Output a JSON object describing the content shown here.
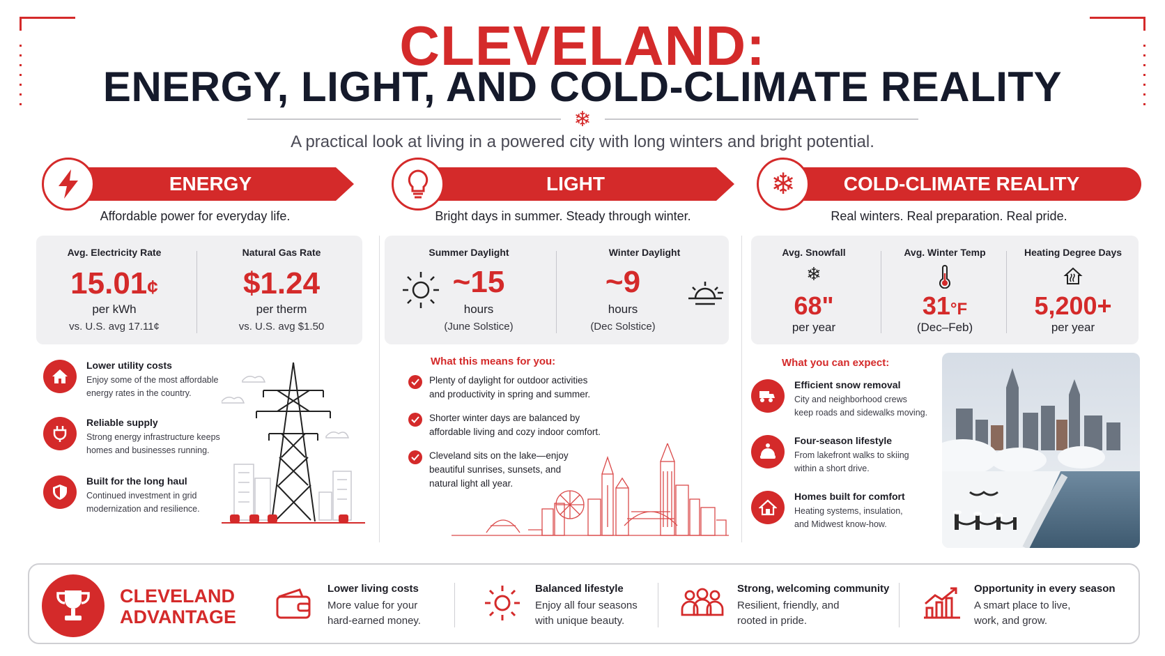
{
  "header": {
    "title_line1": "CLEVELAND:",
    "title_line2": "ENERGY, LIGHT, AND COLD-CLIMATE REALITY",
    "subtitle": "A practical look at living in a powered city with long winters and bright potential."
  },
  "energy": {
    "title": "ENERGY",
    "tagline": "Affordable power for everyday life.",
    "stats": [
      {
        "label": "Avg. Electricity Rate",
        "value": "15.01",
        "value_unit": "¢",
        "unit": "per kWh",
        "compare": "vs. U.S. avg 17.11¢"
      },
      {
        "label": "Natural Gas Rate",
        "value": "$1.24",
        "unit": "per therm",
        "compare": "vs. U.S. avg $1.50"
      }
    ],
    "features": [
      {
        "title": "Lower utility costs",
        "desc1": "Enjoy some of the most affordable",
        "desc2": "energy rates in the country.",
        "icon": "house-icon"
      },
      {
        "title": "Reliable supply",
        "desc1": "Strong energy infrastructure keeps",
        "desc2": "homes and businesses running.",
        "icon": "plug-icon"
      },
      {
        "title": "Built for the long haul",
        "desc1": "Continued investment in grid",
        "desc2": "modernization and resilience.",
        "icon": "shield-icon"
      }
    ]
  },
  "light": {
    "title": "LIGHT",
    "tagline": "Bright days in summer. Steady through winter.",
    "stats": [
      {
        "label": "Summer Daylight",
        "value": "~15",
        "unit": "hours",
        "note": "(June Solstice)"
      },
      {
        "label": "Winter Daylight",
        "value": "~9",
        "unit": "hours",
        "note": "(Dec Solstice)"
      }
    ],
    "section_title": "What this means for you:",
    "points": [
      {
        "line1": "Plenty of daylight for outdoor activities",
        "line2": "and productivity in spring and summer.",
        "line3": ""
      },
      {
        "line1": "Shorter winter days are balanced by",
        "line2": "affordable living and cozy indoor comfort.",
        "line3": ""
      },
      {
        "line1": "Cleveland sits on the lake—enjoy",
        "line2": "beautiful sunrises, sunsets, and",
        "line3": "natural light all year."
      }
    ]
  },
  "cold": {
    "title": "COLD-CLIMATE REALITY",
    "tagline": "Real winters. Real preparation. Real pride.",
    "stats": [
      {
        "label": "Avg. Snowfall",
        "value": "68\"",
        "unit": "per year",
        "icon": "snowflake-icon"
      },
      {
        "label": "Avg. Winter Temp",
        "value": "31",
        "value_unit": "°F",
        "unit": "(Dec–Feb)",
        "icon": "thermometer-icon"
      },
      {
        "label": "Heating Degree Days",
        "value": "5,200+",
        "unit": "per year",
        "icon": "heated-house-icon"
      }
    ],
    "section_title": "What you can expect:",
    "features": [
      {
        "title": "Efficient snow removal",
        "desc1": "City and neighborhood crews",
        "desc2": "keep roads and sidewalks moving.",
        "icon": "snowplow-icon"
      },
      {
        "title": "Four-season lifestyle",
        "desc1": "From lakefront walks to skiing",
        "desc2": "within a short drive.",
        "icon": "beanie-icon"
      },
      {
        "title": "Homes built for comfort",
        "desc1": "Heating systems, insulation,",
        "desc2": "and Midwest know-how.",
        "icon": "home-icon"
      }
    ]
  },
  "advantage": {
    "title_line1": "CLEVELAND",
    "title_line2": "ADVANTAGE",
    "items": [
      {
        "title": "Lower living costs",
        "line1": "More value for your",
        "line2": "hard-earned money.",
        "icon": "wallet-icon"
      },
      {
        "title": "Balanced lifestyle",
        "line1": "Enjoy all four seasons",
        "line2": "with unique beauty.",
        "icon": "sun-icon"
      },
      {
        "title": "Strong, welcoming community",
        "line1": "Resilient, friendly, and",
        "line2": "rooted in pride.",
        "icon": "people-icon"
      },
      {
        "title": "Opportunity in every season",
        "line1": "A smart place to live,",
        "line2": "work, and grow.",
        "icon": "growth-chart-icon"
      }
    ]
  },
  "colors": {
    "accent": "#d42a2a",
    "dark": "#151a2b",
    "panel": "#f0f0f2"
  }
}
